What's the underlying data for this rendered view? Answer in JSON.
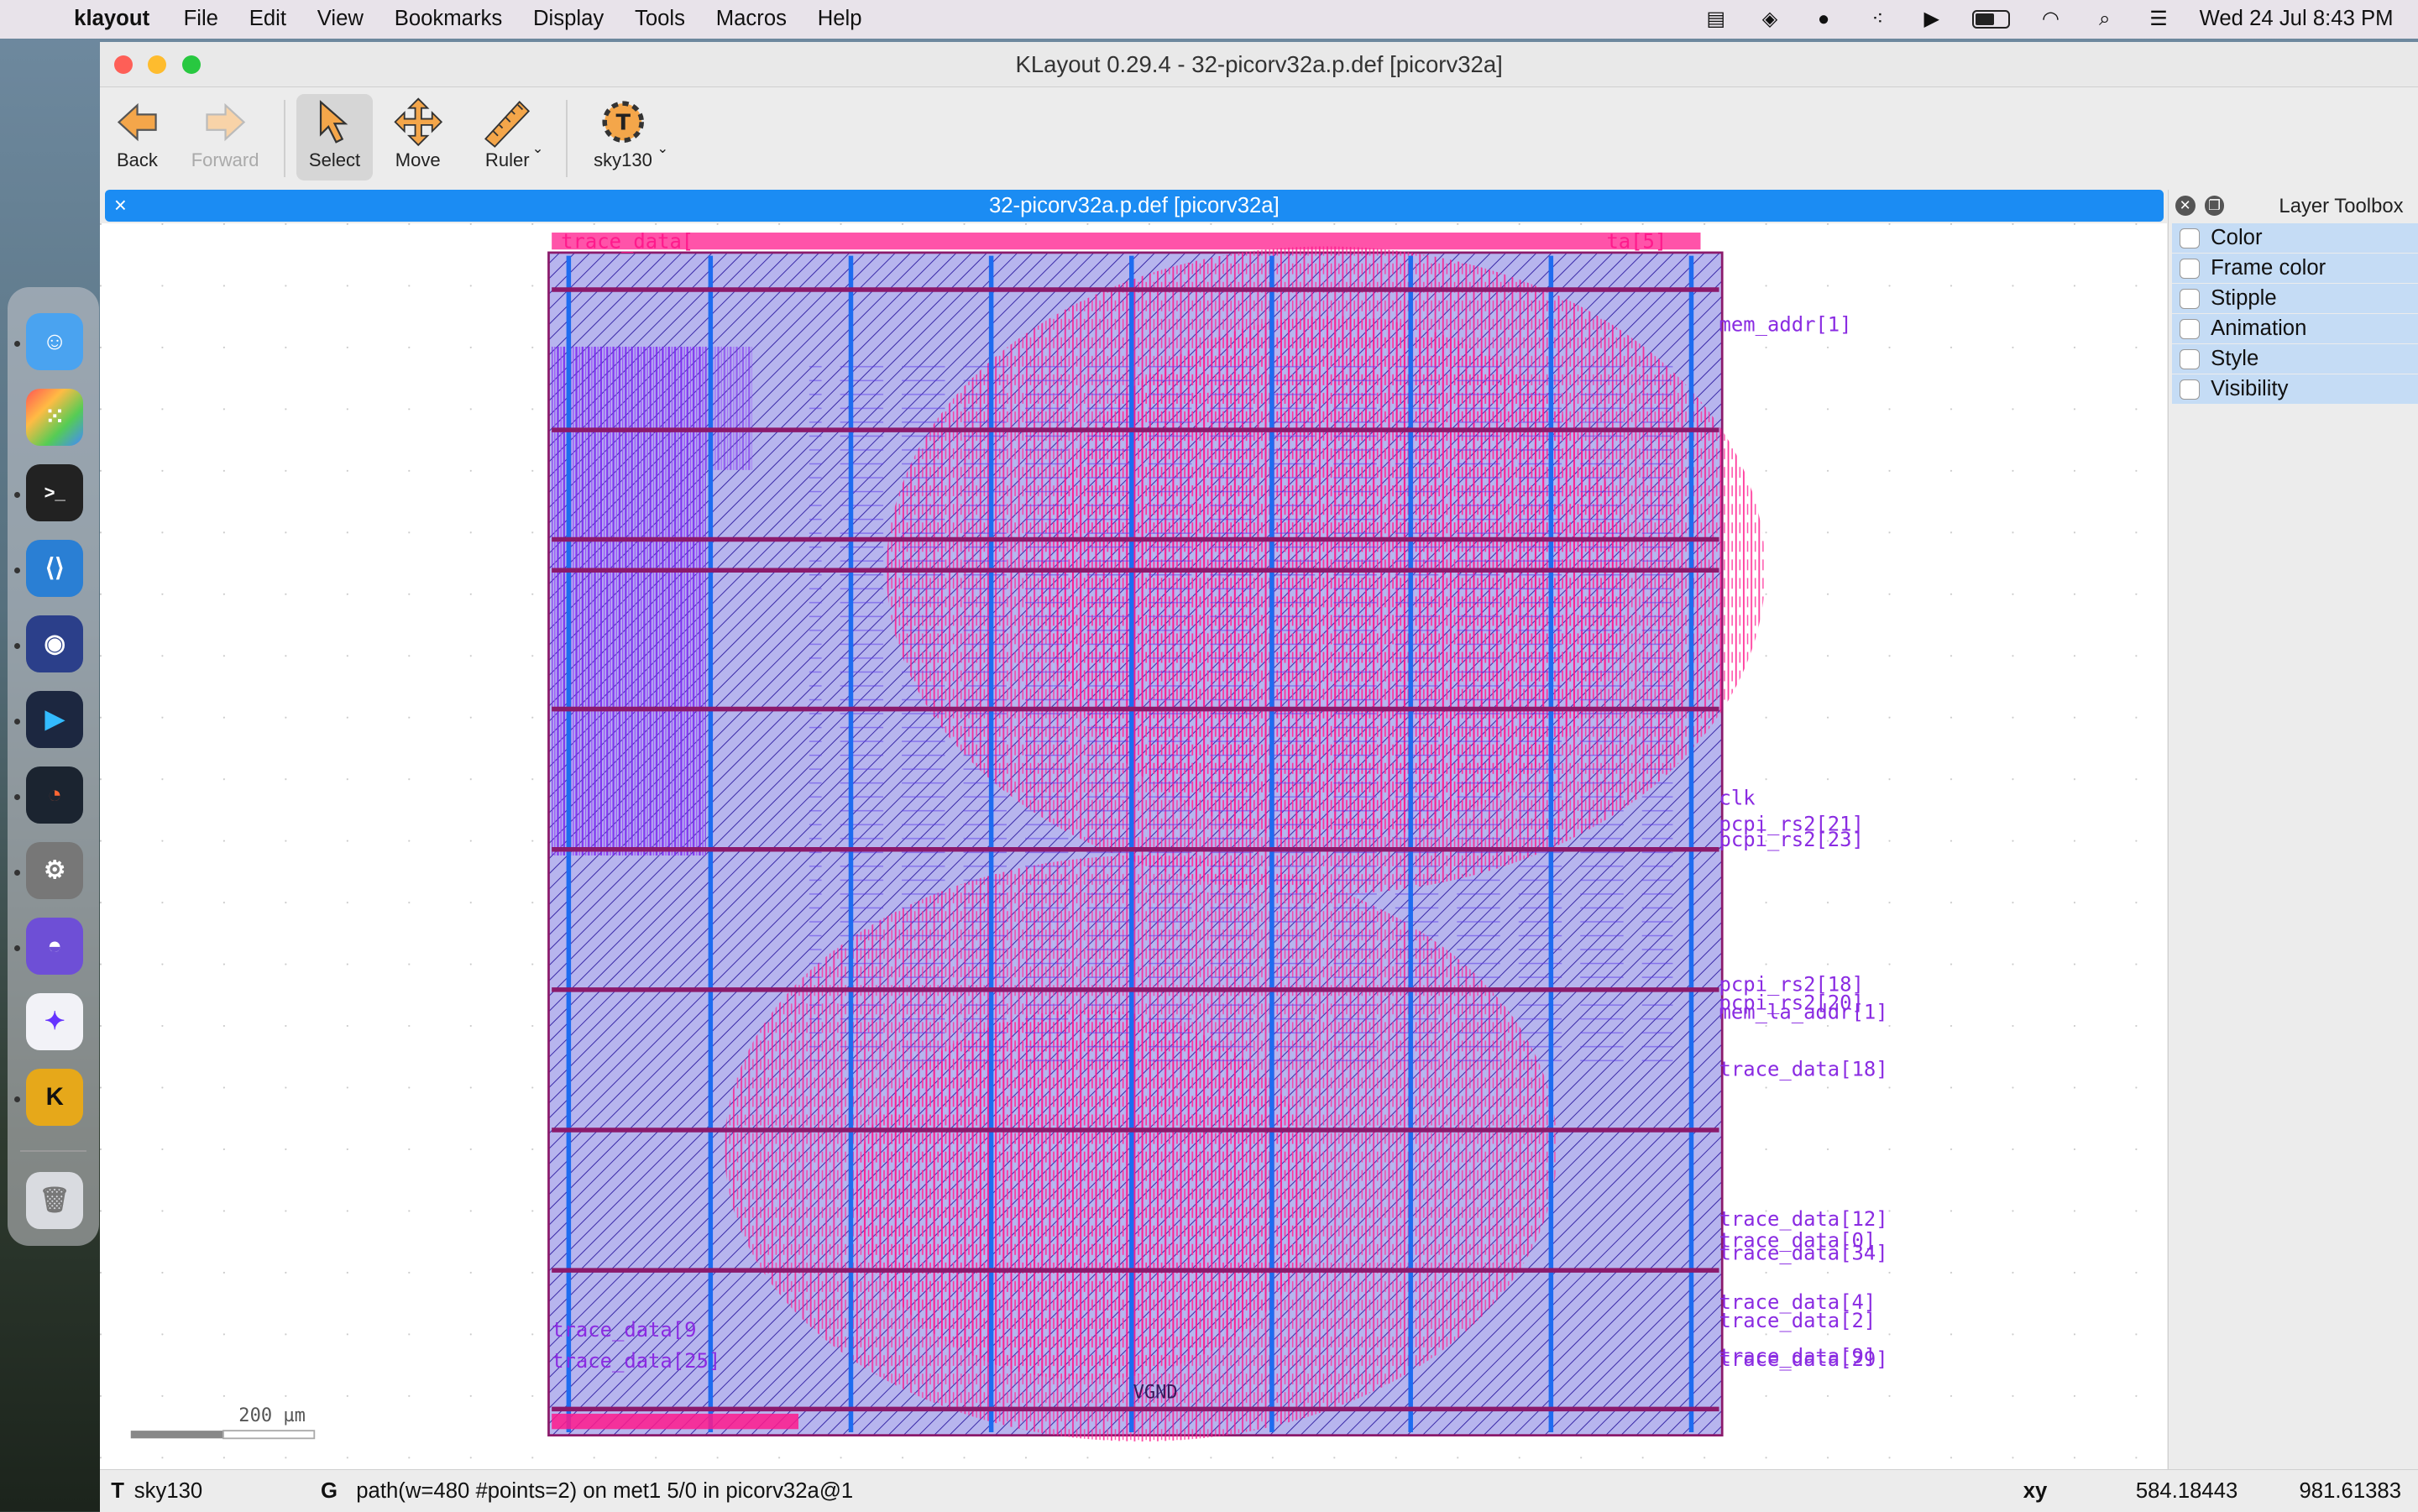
{
  "menubar": {
    "app_name": "klayout",
    "items": [
      "File",
      "Edit",
      "View",
      "Bookmarks",
      "Display",
      "Tools",
      "Macros",
      "Help"
    ],
    "clock": "Wed 24 Jul  8:43 PM"
  },
  "window": {
    "title": "KLayout 0.29.4 - 32-picorv32a.p.def [picorv32a]"
  },
  "toolbar": {
    "back": "Back",
    "forward": "Forward",
    "select": "Select",
    "move": "Move",
    "ruler": "Ruler",
    "tech": "sky130"
  },
  "layout_tab": {
    "title": "32-picorv32a.p.def [picorv32a]",
    "close": "×"
  },
  "canvas": {
    "scale_label": "200 µm",
    "pin_labels_right": [
      "mem_addr[1]",
      "clk",
      "pcpi_rs2[21]",
      "pcpi_rs2[23]",
      "pcpi_rs2[18]",
      "pcpi_rs2[20]",
      "mem_la_addr[1]",
      "trace_data[18]",
      "trace_data[12]",
      "trace_data[0]",
      "trace_data[34]",
      "trace_data[4]",
      "trace_data[2]",
      "trace_data[9]",
      "trace_data[29]"
    ],
    "pin_labels_left": [
      "trace_data[9",
      "trace_data[25]"
    ],
    "top_labels": [
      "trace_data[",
      "ta[5]"
    ],
    "bottom_label": "VGND",
    "colors": {
      "metal_blue": "#1e6cf0",
      "net_pink": "#ff1a8c",
      "violet": "#8a2be2",
      "rail": "#8b1a6b",
      "hatch": "#3a2aa8"
    }
  },
  "layer_toolbox": {
    "title": "Layer Toolbox",
    "rows": [
      "Color",
      "Frame color",
      "Stipple",
      "Animation",
      "Style",
      "Visibility"
    ]
  },
  "statusbar": {
    "left_mode": "T",
    "tech": "sky130",
    "grid_mode": "G",
    "selection": "path(w=480 #points=2) on met1 5/0 in picorv32a@1",
    "coord_label": "xy",
    "x": "584.18443",
    "y": "981.61383"
  }
}
